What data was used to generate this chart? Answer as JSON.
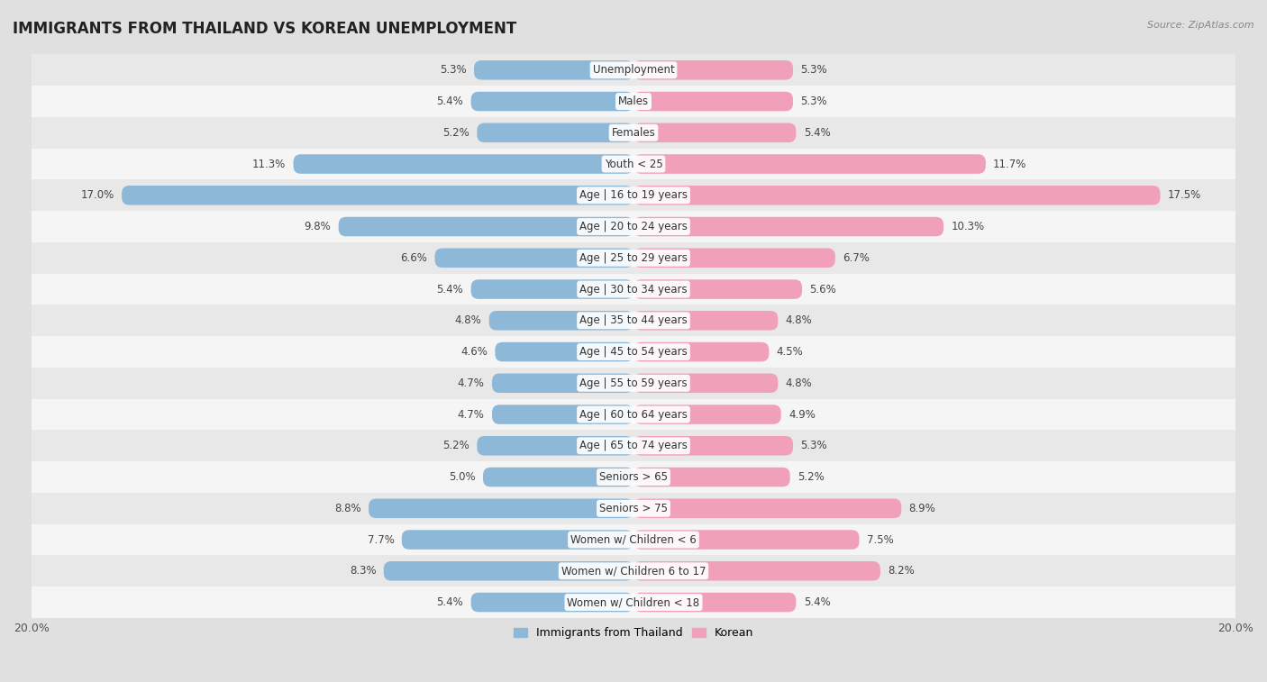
{
  "title": "IMMIGRANTS FROM THAILAND VS KOREAN UNEMPLOYMENT",
  "source": "Source: ZipAtlas.com",
  "categories": [
    "Unemployment",
    "Males",
    "Females",
    "Youth < 25",
    "Age | 16 to 19 years",
    "Age | 20 to 24 years",
    "Age | 25 to 29 years",
    "Age | 30 to 34 years",
    "Age | 35 to 44 years",
    "Age | 45 to 54 years",
    "Age | 55 to 59 years",
    "Age | 60 to 64 years",
    "Age | 65 to 74 years",
    "Seniors > 65",
    "Seniors > 75",
    "Women w/ Children < 6",
    "Women w/ Children 6 to 17",
    "Women w/ Children < 18"
  ],
  "thailand_values": [
    5.3,
    5.4,
    5.2,
    11.3,
    17.0,
    9.8,
    6.6,
    5.4,
    4.8,
    4.6,
    4.7,
    4.7,
    5.2,
    5.0,
    8.8,
    7.7,
    8.3,
    5.4
  ],
  "korean_values": [
    5.3,
    5.3,
    5.4,
    11.7,
    17.5,
    10.3,
    6.7,
    5.6,
    4.8,
    4.5,
    4.8,
    4.9,
    5.3,
    5.2,
    8.9,
    7.5,
    8.2,
    5.4
  ],
  "thailand_color": "#8db8d8",
  "korean_color": "#f0a0b8",
  "row_bg_colors": [
    "#e8e8e8",
    "#f5f5f5"
  ],
  "bg_color": "#e0e0e0",
  "xlim": 20.0,
  "bar_height": 0.62,
  "label_fontsize": 8.5,
  "value_fontsize": 8.5,
  "title_fontsize": 12,
  "legend_labels": [
    "Immigrants from Thailand",
    "Korean"
  ],
  "bottom_label": "20.0%"
}
